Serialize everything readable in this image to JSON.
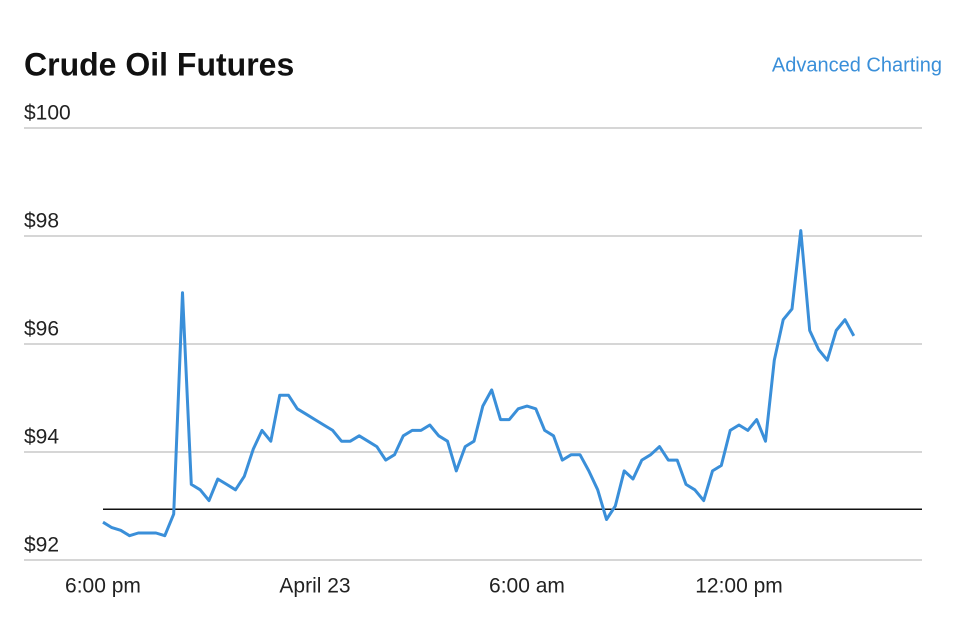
{
  "chart_data": {
    "type": "line",
    "title": "Crude Oil Futures",
    "link": "Advanced Charting",
    "categories": [
      "6:00 pm",
      null,
      null,
      null,
      null,
      null,
      null,
      null,
      null,
      null,
      null,
      null,
      null,
      null,
      null,
      null,
      null,
      null,
      null,
      null,
      null,
      null,
      null,
      null,
      "April 23",
      null,
      null,
      null,
      null,
      null,
      null,
      null,
      null,
      null,
      null,
      null,
      null,
      null,
      null,
      null,
      null,
      null,
      null,
      null,
      null,
      null,
      null,
      null,
      "6:00 am",
      null,
      null,
      null,
      null,
      null,
      null,
      null,
      null,
      null,
      null,
      null,
      null,
      null,
      null,
      null,
      null,
      null,
      null,
      null,
      null,
      null,
      null,
      null,
      "12:00 pm",
      null,
      null,
      null,
      null,
      null,
      null,
      null,
      null,
      null,
      null,
      null,
      null,
      null
    ],
    "values": [
      92.7,
      92.6,
      92.55,
      92.45,
      92.5,
      92.5,
      92.5,
      92.45,
      92.85,
      96.95,
      93.4,
      93.3,
      93.1,
      93.5,
      93.4,
      93.3,
      93.55,
      94.05,
      94.4,
      94.2,
      95.05,
      95.05,
      94.8,
      94.7,
      94.6,
      94.5,
      94.4,
      94.2,
      94.2,
      94.3,
      94.2,
      94.1,
      93.85,
      93.95,
      94.3,
      94.4,
      94.4,
      94.5,
      94.3,
      94.2,
      93.65,
      94.1,
      94.2,
      94.85,
      95.15,
      94.6,
      94.6,
      94.8,
      94.85,
      94.8,
      94.4,
      94.3,
      93.85,
      93.95,
      93.95,
      93.65,
      93.3,
      92.75,
      93.0,
      93.65,
      93.5,
      93.85,
      93.95,
      94.1,
      93.85,
      93.85,
      93.4,
      93.3,
      93.1,
      93.65,
      93.75,
      94.4,
      94.5,
      94.4,
      94.6,
      94.2,
      95.7,
      96.45,
      96.65,
      98.1,
      96.25,
      95.9,
      95.7,
      96.25,
      96.45,
      96.15
    ],
    "color": "#3a8fd9",
    "reference_line": 92.94,
    "ylim": [
      92,
      100
    ],
    "yticks": [
      {
        "value": 92,
        "label": "$92"
      },
      {
        "value": 94,
        "label": "$94"
      },
      {
        "value": 96,
        "label": "$96"
      },
      {
        "value": 98,
        "label": "$98"
      },
      {
        "value": 100,
        "label": "$100"
      }
    ],
    "grid": true
  }
}
